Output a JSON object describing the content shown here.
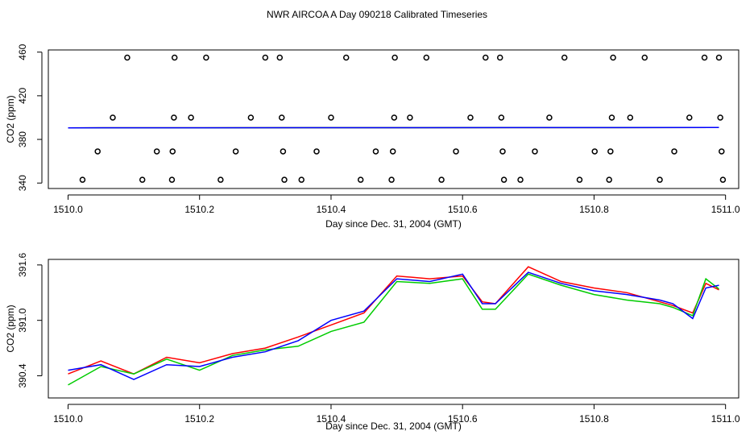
{
  "title": "NWR AIRCOA A  Day 090218  Calibrated Timeseries",
  "chart_data": [
    {
      "type": "scatter",
      "xlabel": "Day since Dec. 31, 2004 (GMT)",
      "ylabel": "CO2 (ppm)",
      "xlim": [
        1509.97,
        1511.02
      ],
      "ylim": [
        335,
        462
      ],
      "xticks": [
        1510.0,
        1510.2,
        1510.4,
        1510.6,
        1510.8,
        1511.0
      ],
      "xtick_labels": [
        "1510.0",
        "1510.2",
        "1510.4",
        "1510.6",
        "1510.8",
        "1511.0"
      ],
      "yticks": [
        340,
        380,
        420,
        460
      ],
      "ytick_labels": [
        "340",
        "380",
        "420",
        "460"
      ],
      "points": [
        [
          1510.022,
          343
        ],
        [
          1510.045,
          369
        ],
        [
          1510.068,
          400
        ],
        [
          1510.09,
          455
        ],
        [
          1510.113,
          343
        ],
        [
          1510.135,
          369
        ],
        [
          1510.158,
          343
        ],
        [
          1510.159,
          369
        ],
        [
          1510.161,
          400
        ],
        [
          1510.162,
          455
        ],
        [
          1510.187,
          400
        ],
        [
          1510.21,
          455
        ],
        [
          1510.232,
          343
        ],
        [
          1510.255,
          369
        ],
        [
          1510.278,
          400
        ],
        [
          1510.3,
          455
        ],
        [
          1510.322,
          455
        ],
        [
          1510.325,
          400
        ],
        [
          1510.327,
          369
        ],
        [
          1510.329,
          343
        ],
        [
          1510.355,
          343
        ],
        [
          1510.378,
          369
        ],
        [
          1510.4,
          400
        ],
        [
          1510.423,
          455
        ],
        [
          1510.445,
          343
        ],
        [
          1510.468,
          369
        ],
        [
          1510.492,
          343
        ],
        [
          1510.494,
          369
        ],
        [
          1510.496,
          400
        ],
        [
          1510.497,
          455
        ],
        [
          1510.52,
          400
        ],
        [
          1510.545,
          455
        ],
        [
          1510.568,
          343
        ],
        [
          1510.59,
          369
        ],
        [
          1510.612,
          400
        ],
        [
          1510.635,
          455
        ],
        [
          1510.657,
          455
        ],
        [
          1510.659,
          400
        ],
        [
          1510.661,
          369
        ],
        [
          1510.663,
          343
        ],
        [
          1510.688,
          343
        ],
        [
          1510.71,
          369
        ],
        [
          1510.732,
          400
        ],
        [
          1510.755,
          455
        ],
        [
          1510.778,
          343
        ],
        [
          1510.801,
          369
        ],
        [
          1510.823,
          343
        ],
        [
          1510.825,
          369
        ],
        [
          1510.827,
          400
        ],
        [
          1510.829,
          455
        ],
        [
          1510.855,
          400
        ],
        [
          1510.877,
          455
        ],
        [
          1510.9,
          343
        ],
        [
          1510.922,
          369
        ],
        [
          1510.945,
          400
        ],
        [
          1510.968,
          455
        ],
        [
          1510.99,
          455
        ],
        [
          1510.992,
          400
        ],
        [
          1510.994,
          369
        ],
        [
          1510.996,
          343
        ]
      ],
      "series": [
        {
          "color": "#ff0000",
          "x": [
            1510.0,
            1510.99
          ],
          "values": [
            390.6,
            390.9
          ]
        },
        {
          "color": "#00cc00",
          "x": [
            1510.0,
            1510.99
          ],
          "values": [
            390.6,
            390.9
          ]
        },
        {
          "color": "#0000ff",
          "x": [
            1510.0,
            1510.99
          ],
          "values": [
            390.6,
            390.9
          ]
        }
      ]
    },
    {
      "type": "line",
      "xlabel": "Day since Dec. 31, 2004 (GMT)",
      "ylabel": "CO2 (ppm)",
      "xlim": [
        1509.97,
        1511.02
      ],
      "ylim": [
        390.16,
        391.66
      ],
      "xticks": [
        1510.0,
        1510.2,
        1510.4,
        1510.6,
        1510.8,
        1511.0
      ],
      "xtick_labels": [
        "1510.0",
        "1510.2",
        "1510.4",
        "1510.6",
        "1510.8",
        "1511.0"
      ],
      "yticks": [
        390.4,
        391.0,
        391.6
      ],
      "ytick_labels": [
        "390.4",
        "391.0",
        "391.6"
      ],
      "series": [
        {
          "color": "#ff0000",
          "x": [
            1510.0,
            1510.05,
            1510.1,
            1510.15,
            1510.2,
            1510.25,
            1510.3,
            1510.35,
            1510.4,
            1510.45,
            1510.5,
            1510.55,
            1510.6,
            1510.63,
            1510.65,
            1510.7,
            1510.75,
            1510.8,
            1510.85,
            1510.9,
            1510.92,
            1510.95,
            1510.97,
            1510.99
          ],
          "values": [
            390.42,
            390.56,
            390.42,
            390.6,
            390.54,
            390.64,
            390.7,
            390.82,
            390.95,
            391.08,
            391.48,
            391.45,
            391.48,
            391.2,
            391.18,
            391.58,
            391.42,
            391.35,
            391.3,
            391.2,
            391.16,
            391.08,
            391.4,
            391.33
          ]
        },
        {
          "color": "#00cc00",
          "x": [
            1510.0,
            1510.05,
            1510.1,
            1510.15,
            1510.2,
            1510.25,
            1510.3,
            1510.35,
            1510.4,
            1510.45,
            1510.5,
            1510.55,
            1510.6,
            1510.63,
            1510.65,
            1510.7,
            1510.75,
            1510.8,
            1510.85,
            1510.9,
            1510.92,
            1510.95,
            1510.97,
            1510.99
          ],
          "values": [
            390.3,
            390.5,
            390.42,
            390.58,
            390.46,
            390.62,
            390.68,
            390.72,
            390.88,
            390.98,
            391.42,
            391.4,
            391.45,
            391.12,
            391.12,
            391.5,
            391.38,
            391.28,
            391.22,
            391.18,
            391.14,
            391.05,
            391.45,
            391.34
          ]
        },
        {
          "color": "#0000ff",
          "x": [
            1510.0,
            1510.05,
            1510.1,
            1510.15,
            1510.2,
            1510.25,
            1510.3,
            1510.35,
            1510.4,
            1510.45,
            1510.5,
            1510.55,
            1510.6,
            1510.63,
            1510.65,
            1510.7,
            1510.75,
            1510.8,
            1510.85,
            1510.9,
            1510.92,
            1510.95,
            1510.97,
            1510.99
          ],
          "values": [
            390.46,
            390.52,
            390.36,
            390.52,
            390.5,
            390.6,
            390.66,
            390.78,
            391.0,
            391.1,
            391.45,
            391.42,
            391.5,
            391.18,
            391.18,
            391.52,
            391.4,
            391.32,
            391.28,
            391.22,
            391.18,
            391.02,
            391.35,
            391.38
          ]
        }
      ]
    }
  ]
}
